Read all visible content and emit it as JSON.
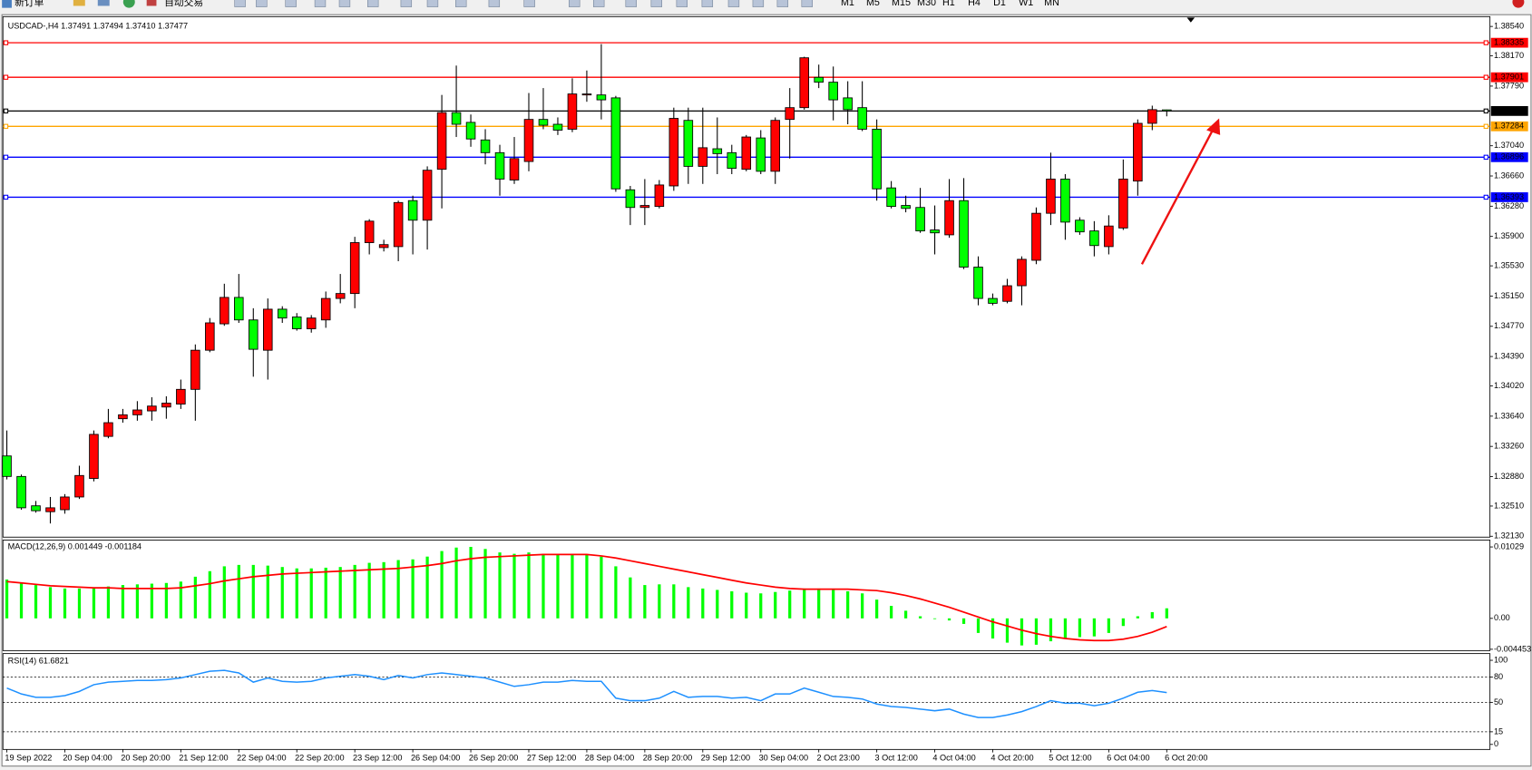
{
  "toolbar": {
    "new_order": "新订单",
    "auto_trading": "自动交易",
    "timeframes": [
      "M1",
      "M5",
      "M15",
      "M30",
      "H1",
      "H4",
      "D1",
      "W1",
      "MN"
    ]
  },
  "chart_data": [
    {
      "type": "candlestick",
      "title": "USDCAD-,H4  1.37491 1.37494 1.37410 1.37477",
      "categories": [
        "19 Sep 2022",
        null,
        null,
        null,
        "20 Sep 04:00",
        null,
        null,
        null,
        "20 Sep 20:00",
        null,
        null,
        null,
        "21 Sep 12:00",
        null,
        null,
        null,
        "22 Sep 04:00",
        null,
        null,
        null,
        "22 Sep 20:00",
        null,
        null,
        null,
        "23 Sep 12:00",
        null,
        null,
        null,
        "26 Sep 04:00",
        null,
        null,
        null,
        "26 Sep 20:00",
        null,
        null,
        null,
        "27 Sep 12:00",
        null,
        null,
        null,
        "28 Sep 04:00",
        null,
        null,
        null,
        "28 Sep 20:00",
        null,
        null,
        null,
        "29 Sep 12:00",
        null,
        null,
        null,
        "30 Sep 04:00",
        null,
        null,
        null,
        "2 Oct 23:00",
        null,
        null,
        null,
        "3 Oct 12:00",
        null,
        null,
        null,
        "4 Oct 04:00",
        null,
        null,
        null,
        "4 Oct 20:00",
        null,
        null,
        null,
        "5 Oct 12:00",
        null,
        null,
        null,
        "6 Oct 04:00",
        null,
        null,
        null,
        "6 Oct 20:00"
      ],
      "open": [
        1.3314,
        1.32882,
        1.32513,
        1.32439,
        1.32464,
        1.32624,
        1.32857,
        1.33386,
        1.33608,
        1.33657,
        1.33706,
        1.33755,
        1.33792,
        1.33977,
        1.34469,
        1.34801,
        1.35133,
        1.3485,
        1.34469,
        1.34985,
        1.34887,
        1.34739,
        1.3485,
        1.3512,
        1.35182,
        1.35822,
        1.3576,
        1.35772,
        1.3635,
        1.36104,
        1.36744,
        1.37457,
        1.37334,
        1.37113,
        1.36953,
        1.36609,
        1.36842,
        1.37371,
        1.3731,
        1.37248,
        1.37679,
        1.37679,
        1.37642,
        1.36486,
        1.36264,
        1.36277,
        1.36535,
        1.37359,
        1.36781,
        1.37002,
        1.36953,
        1.36744,
        1.37138,
        1.36719,
        1.37371,
        1.37519,
        1.379,
        1.37839,
        1.37642,
        1.37519,
        1.37248,
        1.3651,
        1.36289,
        1.36264,
        1.35981,
        1.3592,
        1.3635,
        1.35514,
        1.3512,
        1.35084,
        1.3528,
        1.356,
        1.36191,
        1.36621,
        1.36104,
        1.35969,
        1.35772,
        1.36006,
        1.36596,
        1.37322,
        1.37491
      ],
      "high": [
        1.3346,
        1.32906,
        1.32574,
        1.32624,
        1.3266,
        1.33017,
        1.3346,
        1.33731,
        1.33731,
        1.33829,
        1.33878,
        1.3389,
        1.341,
        1.34542,
        1.34874,
        1.35305,
        1.35428,
        1.34997,
        1.3512,
        1.35022,
        1.34936,
        1.34911,
        1.35207,
        1.35428,
        1.35895,
        1.36117,
        1.35858,
        1.3635,
        1.36412,
        1.36781,
        1.37679,
        1.38048,
        1.37433,
        1.37248,
        1.37052,
        1.3715,
        1.37703,
        1.37765,
        1.37396,
        1.37888,
        1.37986,
        1.38318,
        1.37667,
        1.36535,
        1.36621,
        1.36609,
        1.37519,
        1.37519,
        1.37519,
        1.37396,
        1.37052,
        1.37175,
        1.37236,
        1.37396,
        1.37765,
        1.38159,
        1.3806,
        1.38036,
        1.37851,
        1.37851,
        1.37371,
        1.36596,
        1.36412,
        1.3651,
        1.36289,
        1.36621,
        1.36633,
        1.35649,
        1.35182,
        1.35366,
        1.35649,
        1.36264,
        1.36953,
        1.36683,
        1.36141,
        1.36092,
        1.36166,
        1.36867,
        1.37371,
        1.37544,
        1.37494
      ],
      "low": [
        1.32845,
        1.32464,
        1.32427,
        1.32291,
        1.32414,
        1.32599,
        1.3282,
        1.33362,
        1.33558,
        1.33583,
        1.33583,
        1.33608,
        1.33731,
        1.33583,
        1.34444,
        1.34776,
        1.34813,
        1.34136,
        1.341,
        1.34813,
        1.34715,
        1.3469,
        1.34751,
        1.35059,
        1.34997,
        1.35674,
        1.35711,
        1.35588,
        1.35674,
        1.35735,
        1.36252,
        1.3715,
        1.37027,
        1.36806,
        1.36412,
        1.3656,
        1.36719,
        1.37248,
        1.37175,
        1.37211,
        1.37593,
        1.37371,
        1.36461,
        1.36043,
        1.36043,
        1.36252,
        1.36473,
        1.3656,
        1.3656,
        1.36683,
        1.36683,
        1.36719,
        1.36683,
        1.3656,
        1.36879,
        1.37494,
        1.37765,
        1.37359,
        1.3731,
        1.37224,
        1.3635,
        1.36252,
        1.36203,
        1.35945,
        1.35674,
        1.35883,
        1.35489,
        1.35034,
        1.35034,
        1.35059,
        1.35034,
        1.35551,
        1.36043,
        1.35858,
        1.3592,
        1.35649,
        1.35674,
        1.35981,
        1.36412,
        1.37236,
        1.3741
      ],
      "close": [
        1.32882,
        1.32488,
        1.32451,
        1.32488,
        1.32624,
        1.32894,
        1.33411,
        1.33558,
        1.33657,
        1.33718,
        1.33767,
        1.33804,
        1.33977,
        1.34469,
        1.34813,
        1.35133,
        1.3485,
        1.34481,
        1.34985,
        1.34874,
        1.34739,
        1.34874,
        1.3512,
        1.35182,
        1.35822,
        1.36092,
        1.35797,
        1.36326,
        1.36104,
        1.36732,
        1.37457,
        1.3731,
        1.37125,
        1.36953,
        1.36621,
        1.36879,
        1.37371,
        1.37298,
        1.37236,
        1.37691,
        1.37691,
        1.37617,
        1.36498,
        1.36264,
        1.36289,
        1.36547,
        1.37384,
        1.36781,
        1.37015,
        1.36941,
        1.36756,
        1.3715,
        1.36719,
        1.37359,
        1.37519,
        1.38146,
        1.37839,
        1.37617,
        1.37494,
        1.37248,
        1.36498,
        1.36277,
        1.36252,
        1.35969,
        1.35945,
        1.3635,
        1.35514,
        1.3512,
        1.35059,
        1.3528,
        1.35612,
        1.36191,
        1.36621,
        1.3608,
        1.35957,
        1.35785,
        1.36031,
        1.36621,
        1.37322,
        1.37494,
        1.37477
      ],
      "colors": {
        "up": "#ff0000",
        "down": "#00ff00",
        "wick": "#000000"
      },
      "ylim": [
        1.32119,
        1.38651
      ],
      "yticks": [
        {
          "value": 1.3854,
          "label": "1.38540"
        },
        {
          "value": 1.3817,
          "label": "1.38170"
        },
        {
          "value": 1.3779,
          "label": "1.37790"
        },
        {
          "value": 1.3704,
          "label": "1.37040"
        },
        {
          "value": 1.3666,
          "label": "1.36660"
        },
        {
          "value": 1.3628,
          "label": "1.36280"
        },
        {
          "value": 1.359,
          "label": "1.35900"
        },
        {
          "value": 1.3553,
          "label": "1.35530"
        },
        {
          "value": 1.3515,
          "label": "1.35150"
        },
        {
          "value": 1.3477,
          "label": "1.34770"
        },
        {
          "value": 1.3439,
          "label": "1.34390"
        },
        {
          "value": 1.3402,
          "label": "1.34020"
        },
        {
          "value": 1.3364,
          "label": "1.33640"
        },
        {
          "value": 1.3326,
          "label": "1.33260"
        },
        {
          "value": 1.3288,
          "label": "1.32880"
        },
        {
          "value": 1.3251,
          "label": "1.32510"
        },
        {
          "value": 1.3213,
          "label": "1.32130"
        }
      ],
      "levels": [
        {
          "value": 1.38335,
          "color": "#ff0000"
        },
        {
          "value": 1.37901,
          "color": "#ff0000"
        },
        {
          "value": 1.37477,
          "color": "#000000"
        },
        {
          "value": 1.37284,
          "color": "#ffa500"
        },
        {
          "value": 1.36896,
          "color": "#0000ff"
        },
        {
          "value": 1.36393,
          "color": "#0000ff"
        }
      ]
    },
    {
      "type": "macd",
      "title": "MACD(12,26,9) 0.001449 -0.001184",
      "histogram": [
        0.0056,
        0.0052,
        0.0048,
        0.0045,
        0.0043,
        0.0043,
        0.0044,
        0.0046,
        0.0048,
        0.0049,
        0.005,
        0.0051,
        0.0053,
        0.006,
        0.0068,
        0.0075,
        0.0077,
        0.0077,
        0.0076,
        0.0074,
        0.0072,
        0.0072,
        0.0073,
        0.0074,
        0.0077,
        0.008,
        0.0081,
        0.0084,
        0.0085,
        0.0089,
        0.0097,
        0.0102,
        0.0103,
        0.01,
        0.0095,
        0.0093,
        0.0095,
        0.0093,
        0.0092,
        0.0092,
        0.0092,
        0.0089,
        0.0075,
        0.0059,
        0.0048,
        0.0049,
        0.0049,
        0.0045,
        0.0043,
        0.0041,
        0.0039,
        0.0037,
        0.0036,
        0.0038,
        0.004,
        0.0043,
        0.0043,
        0.0042,
        0.0039,
        0.0036,
        0.0027,
        0.0018,
        0.0011,
        0.0003,
        -0.0001,
        -0.0003,
        -0.0008,
        -0.0021,
        -0.0029,
        -0.0035,
        -0.0039,
        -0.0038,
        -0.0033,
        -0.0029,
        -0.0027,
        -0.0026,
        -0.0021,
        -0.0011,
        0.0003,
        0.0009,
        0.001449
      ],
      "histogram_color": "#00ff00",
      "signal": [
        0.0053,
        0.0051,
        0.0049,
        0.0047,
        0.0046,
        0.0045,
        0.0044,
        0.0044,
        0.0043,
        0.0043,
        0.0043,
        0.0043,
        0.0044,
        0.0047,
        0.005,
        0.0054,
        0.0057,
        0.006,
        0.0062,
        0.0064,
        0.0065,
        0.0066,
        0.0067,
        0.0068,
        0.0069,
        0.007,
        0.0071,
        0.0072,
        0.0074,
        0.0076,
        0.0079,
        0.0083,
        0.0086,
        0.0088,
        0.0089,
        0.009,
        0.0091,
        0.0092,
        0.0092,
        0.0092,
        0.0092,
        0.009,
        0.0087,
        0.0083,
        0.0079,
        0.0075,
        0.0071,
        0.0067,
        0.0063,
        0.0059,
        0.0055,
        0.0051,
        0.0048,
        0.0045,
        0.0043,
        0.0042,
        0.0042,
        0.0042,
        0.0042,
        0.0041,
        0.004,
        0.0037,
        0.0033,
        0.0028,
        0.0022,
        0.0016,
        0.0009,
        0.0002,
        -0.0005,
        -0.0011,
        -0.0017,
        -0.0022,
        -0.0026,
        -0.0029,
        -0.0031,
        -0.0032,
        -0.0032,
        -0.003,
        -0.0026,
        -0.002,
        -0.001184
      ],
      "signal_color": "#ff0000",
      "ylim": [
        -0.00465,
        0.01128
      ],
      "yticks": [
        0.01029,
        {
          "value": 0,
          "label": "0.00"
        },
        -0.004453
      ]
    },
    {
      "type": "line",
      "title": "RSI(14) 61.6821",
      "values": [
        67,
        60,
        56,
        56,
        58,
        63,
        71,
        74,
        75,
        76,
        76,
        77,
        79,
        83,
        87,
        88,
        85,
        74,
        79,
        75,
        74,
        75,
        79,
        81,
        83,
        81,
        77,
        82,
        79,
        83,
        85,
        83,
        81,
        79,
        74,
        69,
        71,
        74,
        74,
        76,
        75,
        75,
        55,
        52,
        52,
        55,
        63,
        56,
        57,
        57,
        55,
        56,
        52,
        60,
        60,
        67,
        62,
        57,
        56,
        54,
        48,
        45,
        44,
        42,
        40,
        42,
        36,
        32,
        32,
        35,
        39,
        45,
        52,
        49,
        49,
        46,
        49,
        55,
        62,
        64,
        61.6821
      ],
      "color": "#1e90ff",
      "ylim": [
        -6,
        108
      ],
      "yticks": [
        100,
        80,
        50,
        15,
        0
      ],
      "levels": [
        80,
        50,
        15
      ]
    }
  ]
}
